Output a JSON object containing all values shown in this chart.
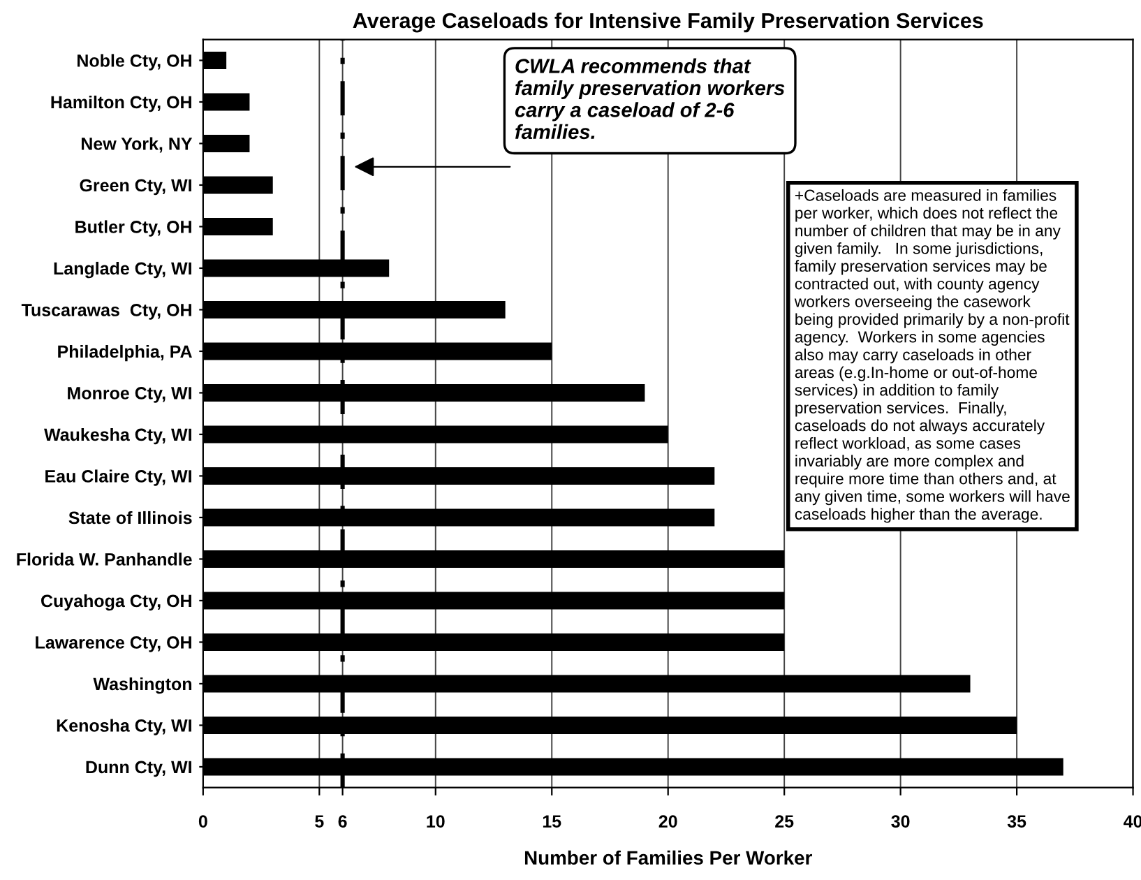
{
  "chart_data": {
    "type": "bar",
    "orientation": "horizontal",
    "title": "Average Caseloads for Intensive Family Preservation Services",
    "xlabel": "Number of Families Per Worker",
    "categories": [
      "Noble Cty, OH",
      "Hamilton Cty, OH",
      "New York, NY",
      "Green Cty, WI",
      "Butler Cty, OH",
      "Langlade Cty, WI",
      "Tuscarawas  Cty, OH",
      "Philadelphia, PA",
      "Monroe Cty, WI",
      "Waukesha Cty, WI",
      "Eau Claire Cty, WI",
      "State of Illinois",
      "Florida W. Panhandle",
      "Cuyahoga Cty, OH",
      "Lawarence Cty, OH",
      "Washington",
      "Kenosha Cty, WI",
      "Dunn Cty, WI"
    ],
    "values": [
      1,
      2,
      2,
      3,
      3,
      8,
      13,
      15,
      19,
      20,
      22,
      22,
      25,
      25,
      25,
      33,
      35,
      37
    ],
    "color": "#000000",
    "xlim": [
      0,
      40
    ],
    "xticks": [
      0,
      5,
      6,
      10,
      15,
      20,
      25,
      30,
      35,
      40
    ],
    "grid": "x",
    "legend": false,
    "ref_lines": [
      {
        "axis": "x",
        "value": 6,
        "label": null,
        "color": "#000000",
        "line_style": "dashdot"
      }
    ],
    "annotations": [
      "CWLA recommends that\nfamily preservation workers\ncarry a caseload of 2-6\nfamilies.",
      "+Caseloads are measured in families\nper worker, which does not reflect the\nnumber of children that may be in any\ngiven family.   In some jurisdictions,\nfamily preservation services may be\ncontracted out, with county agency\nworkers overseeing the casework\nbeing provided primarily by a non-profit\nagency.  Workers in some agencies\nalso may carry caseloads in other\nareas (e.g.In-home or out-of-home\nservices) in addition to family\npreservation services.  Finally,\ncaseloads do not always accurately\nreflect workload, as some cases\ninvariably are more complex and\nrequire more time than others and, at\nany given time, some workers will have\ncaseloads higher than the average."
    ]
  }
}
